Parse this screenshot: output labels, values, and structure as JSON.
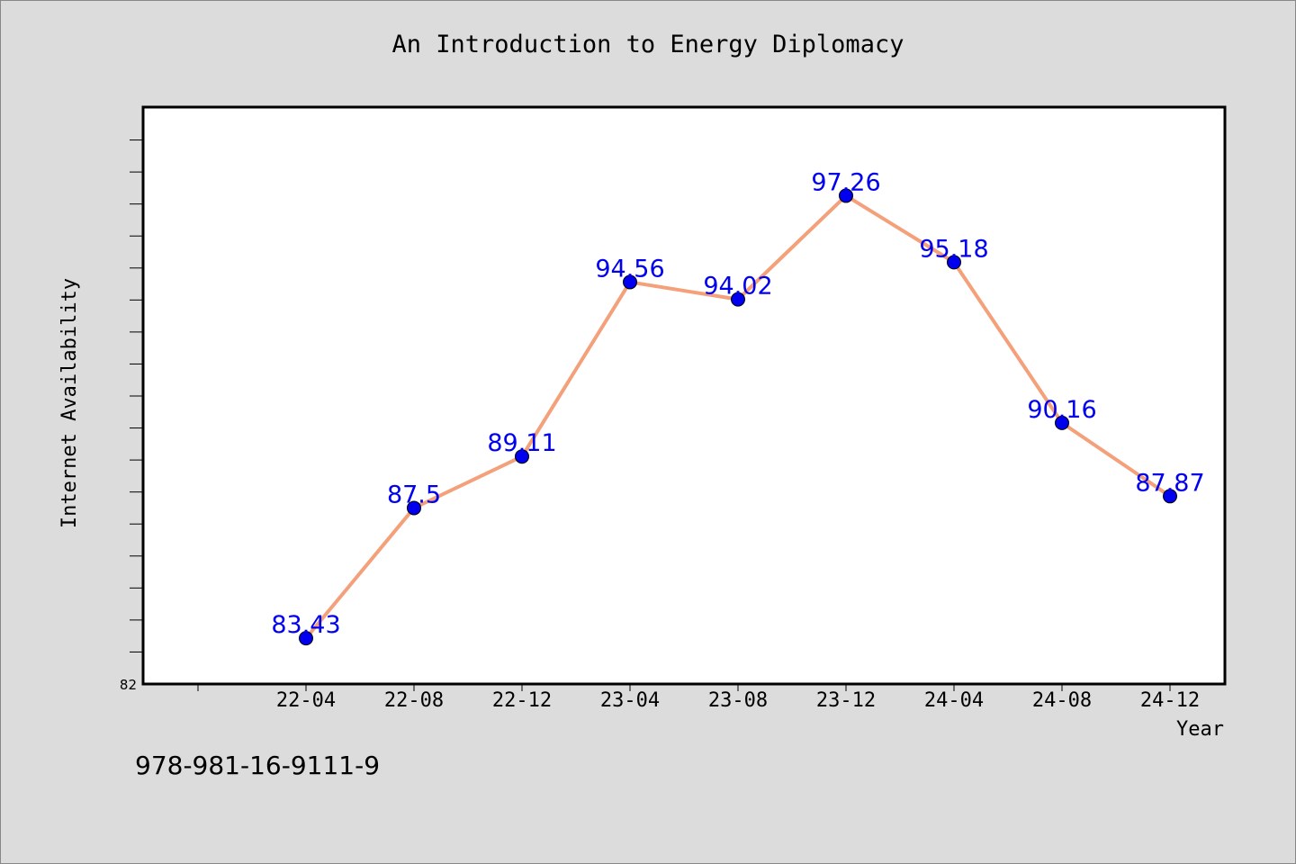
{
  "chart_data": {
    "type": "line",
    "title": "An Introduction to Energy Diplomacy",
    "xlabel": "Year",
    "ylabel": "Internet Availability",
    "categories": [
      "22-04",
      "22-08",
      "22-12",
      "23-04",
      "23-08",
      "23-12",
      "24-04",
      "24-08",
      "24-12"
    ],
    "values": [
      83.43,
      87.5,
      89.11,
      94.56,
      94.02,
      97.26,
      95.18,
      90.16,
      87.87
    ],
    "data_labels": [
      "83.43",
      "87.5",
      "89.11",
      "94.56",
      "94.02",
      "97.26",
      "95.18",
      "90.16",
      "87.87"
    ],
    "ylim": [
      82,
      100
    ],
    "y_tick_labels": [
      "82"
    ],
    "grid": false,
    "legend": false,
    "colors": {
      "line": "#f4a07a",
      "marker": "#0000ee",
      "label": "#0000ee"
    }
  },
  "footer": {
    "isbn": "978-981-16-9111-9"
  }
}
